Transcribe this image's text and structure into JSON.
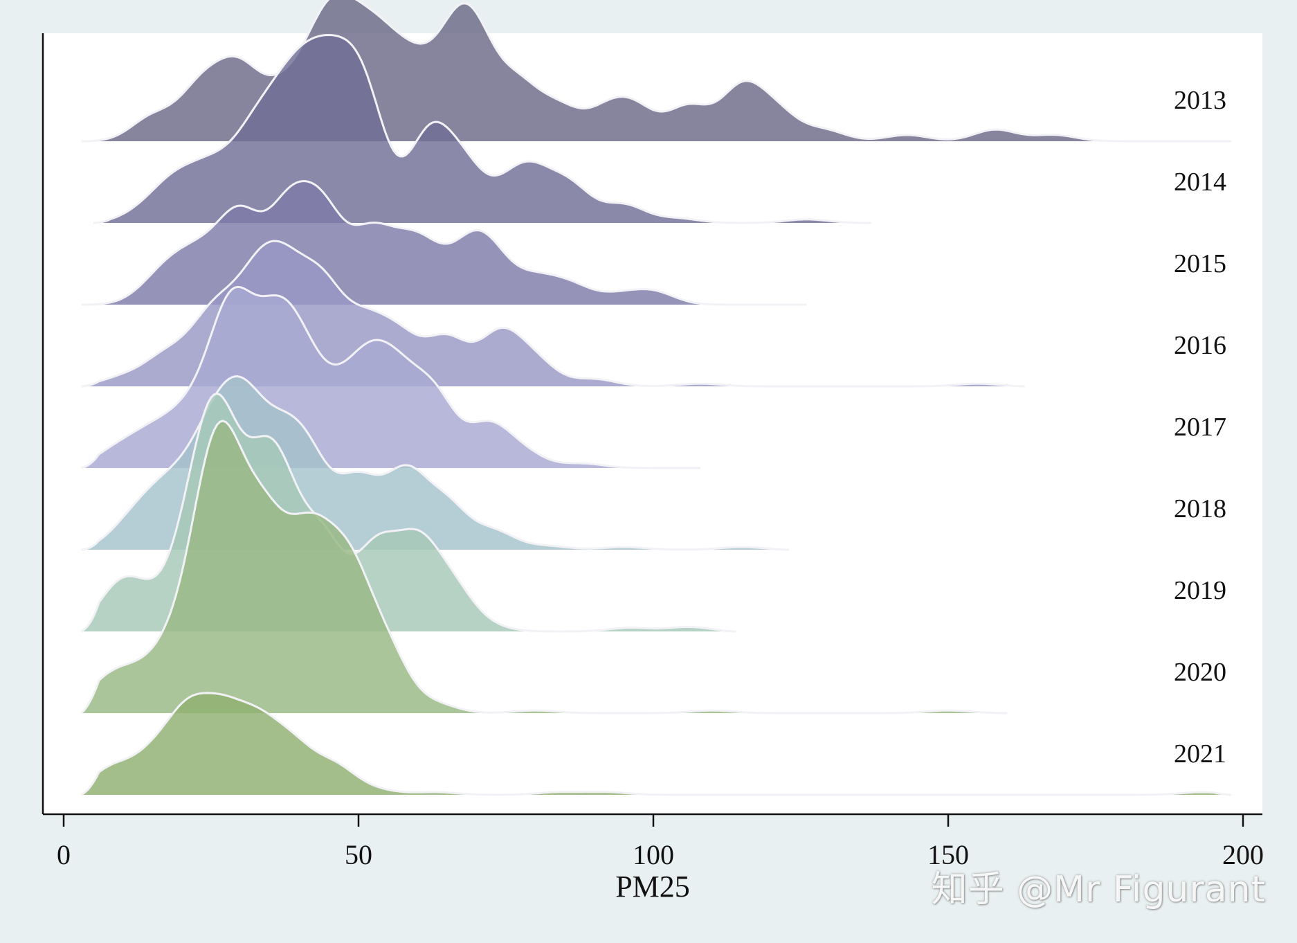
{
  "chart_data": {
    "type": "ridgeline",
    "title": "",
    "xlabel": "PM25",
    "ylabel": "",
    "xlim": [
      0,
      200
    ],
    "xticks": [
      0,
      50,
      100,
      150,
      200
    ],
    "grid": false,
    "series": [
      {
        "name": "2013",
        "color": "#6b6a88",
        "range": [
          3,
          198
        ],
        "peaks": [
          [
            15,
            0.26
          ],
          [
            22,
            0.32
          ],
          [
            25,
            0.36
          ],
          [
            30,
            0.7
          ],
          [
            37,
            0.47
          ],
          [
            43,
            0.76
          ],
          [
            47,
            0.92
          ],
          [
            52,
            0.8
          ],
          [
            56,
            0.48
          ],
          [
            60,
            0.55
          ],
          [
            66,
            0.83
          ],
          [
            70,
            0.9
          ],
          [
            77,
            0.58
          ],
          [
            84,
            0.35
          ],
          [
            92,
            0.3
          ],
          [
            97,
            0.33
          ],
          [
            106,
            0.38
          ],
          [
            115,
            0.58
          ],
          [
            121,
            0.3
          ],
          [
            129,
            0.12
          ],
          [
            143,
            0.07
          ],
          [
            158,
            0.13
          ],
          [
            168,
            0.07
          ]
        ]
      },
      {
        "name": "2014",
        "color": "#706f96",
        "range": [
          5,
          137
        ],
        "peaks": [
          [
            13,
            0.1
          ],
          [
            18,
            0.33
          ],
          [
            22,
            0.26
          ],
          [
            26,
            0.44
          ],
          [
            32,
            0.78
          ],
          [
            37,
            0.86
          ],
          [
            41,
            0.93
          ],
          [
            45,
            0.99
          ],
          [
            49,
            0.8
          ],
          [
            52,
            0.82
          ],
          [
            62,
            0.95
          ],
          [
            68,
            0.57
          ],
          [
            76,
            0.35
          ],
          [
            80,
            0.4
          ],
          [
            86,
            0.38
          ],
          [
            95,
            0.2
          ],
          [
            104,
            0.05
          ],
          [
            126,
            0.04
          ]
        ]
      },
      {
        "name": "2015",
        "color": "#7e7ba8",
        "range": [
          3,
          126
        ],
        "peaks": [
          [
            15,
            0.15
          ],
          [
            19,
            0.34
          ],
          [
            24,
            0.44
          ],
          [
            30,
            0.92
          ],
          [
            38,
            0.99
          ],
          [
            44,
            0.96
          ],
          [
            52,
            0.72
          ],
          [
            58,
            0.45
          ],
          [
            62,
            0.41
          ],
          [
            69,
            0.55
          ],
          [
            73,
            0.38
          ],
          [
            80,
            0.26
          ],
          [
            86,
            0.2
          ],
          [
            94,
            0.1
          ],
          [
            100,
            0.14
          ]
        ]
      },
      {
        "name": "2016",
        "color": "#9898c6",
        "range": [
          3,
          163
        ],
        "peaks": [
          [
            10,
            0.1
          ],
          [
            17,
            0.3
          ],
          [
            23,
            0.36
          ],
          [
            27,
            0.62
          ],
          [
            33,
            1.0
          ],
          [
            38,
            0.96
          ],
          [
            44,
            0.98
          ],
          [
            51,
            0.62
          ],
          [
            57,
            0.5
          ],
          [
            65,
            0.52
          ],
          [
            74,
            0.57
          ],
          [
            80,
            0.26
          ],
          [
            90,
            0.08
          ],
          [
            108,
            0.03
          ],
          [
            155,
            0.03
          ]
        ]
      },
      {
        "name": "2017",
        "color": "#a8aad2",
        "range": [
          3,
          108
        ],
        "peaks": [
          [
            9,
            0.2
          ],
          [
            15,
            0.35
          ],
          [
            21,
            0.5
          ],
          [
            27,
            0.97
          ],
          [
            30,
            1.0
          ],
          [
            36,
            1.3
          ],
          [
            41,
            0.92
          ],
          [
            47,
            0.58
          ],
          [
            52,
            0.9
          ],
          [
            57,
            0.77
          ],
          [
            63,
            0.74
          ],
          [
            72,
            0.46
          ],
          [
            78,
            0.16
          ],
          [
            88,
            0.05
          ]
        ]
      },
      {
        "name": "2018",
        "color": "#a5c2ca",
        "range": [
          3,
          123
        ],
        "peaks": [
          [
            11,
            0.25
          ],
          [
            16,
            0.47
          ],
          [
            21,
            0.55
          ],
          [
            26,
            1.07
          ],
          [
            31,
            1.25
          ],
          [
            37,
            0.94
          ],
          [
            42,
            0.82
          ],
          [
            50,
            0.74
          ],
          [
            58,
            0.82
          ],
          [
            65,
            0.48
          ],
          [
            73,
            0.2
          ],
          [
            82,
            0.04
          ],
          [
            95,
            0.03
          ],
          [
            115,
            0.03
          ]
        ]
      },
      {
        "name": "2019",
        "color": "#a6c8b8",
        "range": [
          3,
          114
        ],
        "peaks": [
          [
            9,
            0.4
          ],
          [
            13,
            0.3
          ],
          [
            20,
            0.5
          ],
          [
            24,
            1.15
          ],
          [
            27,
            1.45
          ],
          [
            33,
            1.1
          ],
          [
            37,
            1.25
          ],
          [
            44,
            0.98
          ],
          [
            53,
            0.9
          ],
          [
            60,
            0.9
          ],
          [
            66,
            0.44
          ],
          [
            72,
            0.05
          ],
          [
            96,
            0.04
          ],
          [
            106,
            0.05
          ]
        ]
      },
      {
        "name": "2020",
        "color": "#98b884",
        "range": [
          3,
          160
        ],
        "peaks": [
          [
            7,
            0.3
          ],
          [
            12,
            0.32
          ],
          [
            18,
            0.58
          ],
          [
            24,
            1.65
          ],
          [
            28,
            1.92
          ],
          [
            34,
            1.7
          ],
          [
            40,
            1.2
          ],
          [
            44,
            1.05
          ],
          [
            49,
            1.25
          ],
          [
            55,
            0.62
          ],
          [
            63,
            0.1
          ],
          [
            80,
            0.03
          ],
          [
            110,
            0.03
          ],
          [
            150,
            0.03
          ]
        ]
      },
      {
        "name": "2021",
        "color": "#8fb070",
        "range": [
          3,
          198
        ],
        "peaks": [
          [
            8,
            0.28
          ],
          [
            15,
            0.38
          ],
          [
            21,
            0.8
          ],
          [
            27,
            0.76
          ],
          [
            33,
            0.67
          ],
          [
            39,
            0.48
          ],
          [
            46,
            0.3
          ],
          [
            53,
            0.05
          ],
          [
            63,
            0.03
          ],
          [
            84,
            0.03
          ],
          [
            92,
            0.03
          ],
          [
            193,
            0.03
          ]
        ]
      }
    ]
  },
  "watermark": "知乎 @Mr Figurant"
}
